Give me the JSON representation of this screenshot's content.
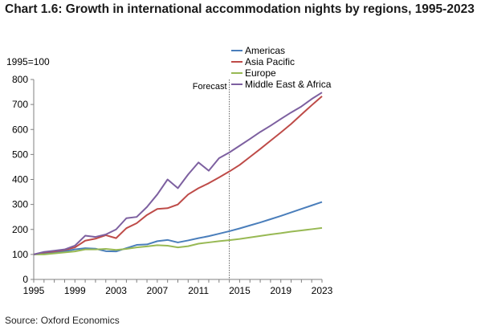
{
  "title": "Chart 1.6: Growth in international accommodation nights by regions, 1995-2023",
  "source": "Source: Oxford Economics",
  "chart_data": {
    "type": "line",
    "ylabel": "1995=100",
    "xlabel": "",
    "ylim": [
      0,
      800
    ],
    "xlim": [
      1995,
      2023
    ],
    "y_ticks": [
      0,
      100,
      200,
      300,
      400,
      500,
      600,
      700,
      800
    ],
    "x_ticks": [
      1995,
      1999,
      2003,
      2007,
      2011,
      2015,
      2019,
      2023
    ],
    "x_tick_labels": [
      "1995",
      "1999",
      "2003",
      "2007",
      "2011",
      "2015",
      "2019",
      "2023"
    ],
    "grid": false,
    "legend_position": "top-right",
    "annotation": {
      "text": "Forecast",
      "x": 2014,
      "style": "dotted vertical line"
    },
    "x": [
      1995,
      1996,
      1997,
      1998,
      1999,
      2000,
      2001,
      2002,
      2003,
      2004,
      2005,
      2006,
      2007,
      2008,
      2009,
      2010,
      2011,
      2012,
      2013,
      2014,
      2015,
      2016,
      2017,
      2018,
      2019,
      2020,
      2021,
      2022,
      2023
    ],
    "series": [
      {
        "name": "Americas",
        "color": "#4a7ebb",
        "values": [
          100,
          105,
          108,
          113,
          120,
          125,
          123,
          113,
          112,
          125,
          138,
          140,
          153,
          158,
          148,
          156,
          165,
          173,
          183,
          193,
          204,
          216,
          228,
          241,
          254,
          268,
          282,
          296,
          310
        ]
      },
      {
        "name": "Asia Pacific",
        "color": "#be4b48",
        "values": [
          100,
          108,
          112,
          118,
          128,
          155,
          163,
          177,
          165,
          205,
          225,
          258,
          282,
          285,
          300,
          340,
          365,
          385,
          408,
          432,
          458,
          490,
          522,
          555,
          588,
          622,
          660,
          697,
          733
        ]
      },
      {
        "name": "Europe",
        "color": "#98b954",
        "values": [
          100,
          100,
          104,
          108,
          112,
          120,
          120,
          122,
          118,
          122,
          128,
          132,
          137,
          135,
          128,
          133,
          143,
          148,
          153,
          157,
          162,
          168,
          174,
          180,
          185,
          191,
          196,
          201,
          206
        ]
      },
      {
        "name": "Middle East & Africa",
        "color": "#7d60a0",
        "values": [
          100,
          110,
          115,
          120,
          135,
          175,
          170,
          180,
          200,
          245,
          250,
          290,
          340,
          400,
          365,
          420,
          468,
          435,
          485,
          508,
          535,
          562,
          590,
          615,
          642,
          668,
          692,
          722,
          748
        ]
      }
    ]
  }
}
